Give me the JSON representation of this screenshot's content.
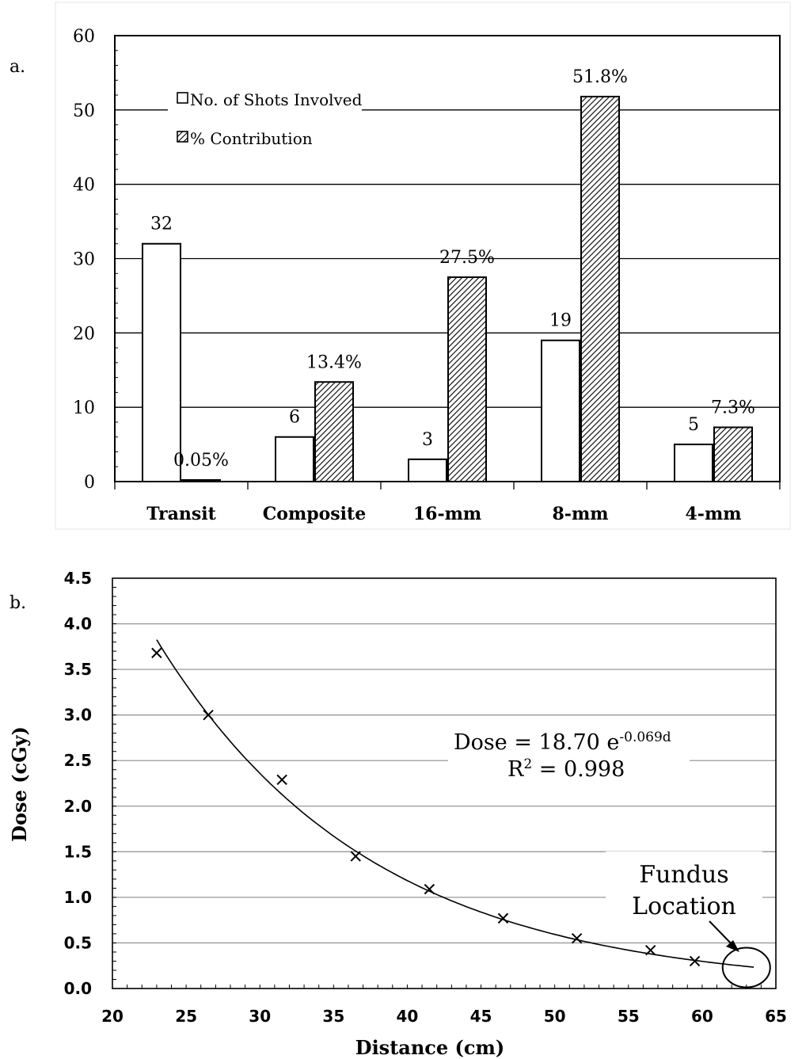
{
  "panel_a_label": "a.",
  "panel_b_label": "b.",
  "chart_data": [
    {
      "type": "bar",
      "categories": [
        "Transit",
        "Composite",
        "16-mm",
        "8-mm",
        "4-mm"
      ],
      "series": [
        {
          "name": "No. of Shots Involved",
          "values": [
            32,
            6,
            3,
            19,
            5
          ],
          "labels": [
            "32",
            "6",
            "3",
            "19",
            "5"
          ],
          "fill": "plain"
        },
        {
          "name": "% Contribution",
          "values": [
            0.05,
            13.4,
            27.5,
            51.8,
            7.3
          ],
          "labels": [
            "0.05%",
            "13.4%",
            "27.5%",
            "51.8%",
            "7.3%"
          ],
          "fill": "hatched"
        }
      ],
      "ylim": [
        0,
        60
      ],
      "yticks": [
        "0",
        "10",
        "20",
        "30",
        "40",
        "50",
        "60"
      ],
      "grid": true,
      "legend": "top-left"
    },
    {
      "type": "scatter",
      "xlabel": "Distance (cm)",
      "ylabel": "Dose (cGy)",
      "xlim": [
        20,
        65
      ],
      "ylim": [
        0,
        4.5
      ],
      "xticks": [
        "20",
        "25",
        "30",
        "35",
        "40",
        "45",
        "50",
        "55",
        "60",
        "65"
      ],
      "yticks": [
        "0.0",
        "0.5",
        "1.0",
        "1.5",
        "2.0",
        "2.5",
        "3.0",
        "3.5",
        "4.0",
        "4.5"
      ],
      "points": [
        {
          "x": 23,
          "y": 3.68
        },
        {
          "x": 26.5,
          "y": 3.0
        },
        {
          "x": 31.5,
          "y": 2.29
        },
        {
          "x": 36.5,
          "y": 1.45
        },
        {
          "x": 41.5,
          "y": 1.09
        },
        {
          "x": 46.5,
          "y": 0.77
        },
        {
          "x": 51.5,
          "y": 0.55
        },
        {
          "x": 56.5,
          "y": 0.42
        },
        {
          "x": 59.5,
          "y": 0.3
        }
      ],
      "fit": {
        "a": 18.7,
        "b": -0.069,
        "x_range": [
          23,
          63.5
        ]
      },
      "fit_equation_main": "Dose = 18.70 e",
      "fit_equation_exp": "-0.069d",
      "r2_main": "R",
      "r2_sup": "2",
      "r2_rest": " = 0.998",
      "annotation": [
        "Fundus",
        "Location"
      ],
      "annotation_target": {
        "x": 63,
        "y": 0.23
      },
      "grid": true
    }
  ]
}
